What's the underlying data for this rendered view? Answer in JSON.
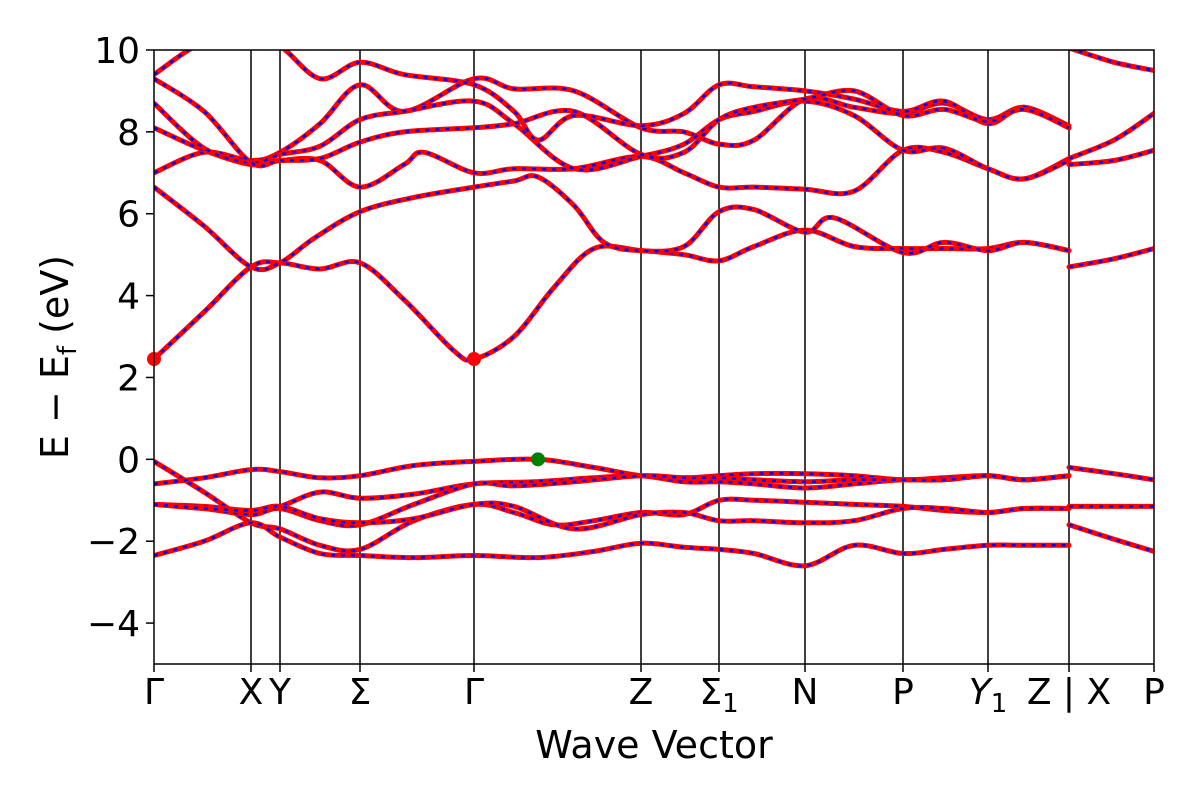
{
  "chart_data": {
    "type": "line",
    "xlabel": "Wave Vector",
    "ylabel": "E − E",
    "ylabel_sub": "f",
    "ylabel_unit": " (eV)",
    "ylim": [
      -5,
      10
    ],
    "xlim": [
      0,
      1
    ],
    "yticks": [
      "−4",
      "−2",
      "0",
      "2",
      "4",
      "6",
      "8",
      "10"
    ],
    "ytick_values": [
      -4,
      -2,
      0,
      2,
      4,
      6,
      8,
      10
    ],
    "kpoints": [
      {
        "pos": 0.0,
        "label": "Γ"
      },
      {
        "pos": 0.097,
        "label": "X"
      },
      {
        "pos": 0.126,
        "label": "Y"
      },
      {
        "pos": 0.206,
        "label": "Σ"
      },
      {
        "pos": 0.32,
        "label": "Γ"
      },
      {
        "pos": 0.487,
        "label": "Z"
      },
      {
        "pos": 0.565,
        "label": "Σ",
        "sub": "1"
      },
      {
        "pos": 0.651,
        "label": "N"
      },
      {
        "pos": 0.749,
        "label": "P"
      },
      {
        "pos": 0.834,
        "label": "Y",
        "sub": "1",
        "italic": true
      },
      {
        "pos": 0.915,
        "label": "Z | X"
      },
      {
        "pos": 1.0,
        "label": "P"
      }
    ],
    "break_at": 0.915,
    "colors": {
      "band_red": "#ff0000",
      "band_blue": "#0000ff",
      "cbm": "#ff0000",
      "vbm": "#008000",
      "frame": "#000000"
    },
    "markers": [
      {
        "name": "cbm",
        "x": 0.0,
        "y": 2.45,
        "color": "#ff0000"
      },
      {
        "name": "cbm",
        "x": 0.32,
        "y": 2.45,
        "color": "#ff0000"
      },
      {
        "name": "vbm",
        "x": 0.384,
        "y": 0.0,
        "color": "#008000"
      }
    ],
    "bands": [
      [
        [
          0,
          2.45
        ],
        [
          0.05,
          3.6
        ],
        [
          0.097,
          4.7
        ],
        [
          0.126,
          4.8
        ],
        [
          0.166,
          4.65
        ],
        [
          0.206,
          4.8
        ],
        [
          0.25,
          3.9
        ],
        [
          0.3,
          2.65
        ],
        [
          0.32,
          2.45
        ],
        [
          0.36,
          3.0
        ],
        [
          0.4,
          4.2
        ],
        [
          0.44,
          5.15
        ],
        [
          0.487,
          5.1
        ],
        [
          0.53,
          5.0
        ],
        [
          0.565,
          4.85
        ],
        [
          0.6,
          5.2
        ],
        [
          0.651,
          5.6
        ],
        [
          0.7,
          5.2
        ],
        [
          0.749,
          5.15
        ],
        [
          0.79,
          5.15
        ],
        [
          0.834,
          5.15
        ],
        [
          0.87,
          5.3
        ],
        [
          0.915,
          5.1
        ]
      ],
      [
        [
          0,
          6.65
        ],
        [
          0.05,
          5.7
        ],
        [
          0.097,
          4.7
        ],
        [
          0.126,
          4.8
        ],
        [
          0.16,
          5.4
        ],
        [
          0.206,
          6.05
        ],
        [
          0.26,
          6.4
        ],
        [
          0.32,
          6.65
        ],
        [
          0.36,
          6.8
        ],
        [
          0.384,
          6.9
        ],
        [
          0.42,
          6.2
        ],
        [
          0.45,
          5.3
        ],
        [
          0.487,
          5.1
        ],
        [
          0.53,
          5.2
        ],
        [
          0.565,
          6.05
        ],
        [
          0.6,
          6.1
        ],
        [
          0.651,
          5.55
        ],
        [
          0.68,
          5.9
        ],
        [
          0.749,
          5.05
        ],
        [
          0.79,
          5.3
        ],
        [
          0.834,
          5.1
        ],
        [
          0.87,
          5.3
        ],
        [
          0.915,
          5.1
        ]
      ],
      [
        [
          0,
          7.0
        ],
        [
          0.05,
          7.5
        ],
        [
          0.097,
          7.3
        ],
        [
          0.126,
          7.5
        ],
        [
          0.166,
          8.2
        ],
        [
          0.206,
          9.15
        ],
        [
          0.25,
          8.5
        ],
        [
          0.32,
          9.3
        ],
        [
          0.36,
          9.05
        ],
        [
          0.42,
          9.0
        ],
        [
          0.487,
          8.1
        ],
        [
          0.53,
          8.0
        ],
        [
          0.565,
          7.7
        ],
        [
          0.6,
          7.8
        ],
        [
          0.651,
          8.8
        ],
        [
          0.7,
          8.6
        ],
        [
          0.749,
          8.45
        ],
        [
          0.79,
          8.7
        ],
        [
          0.834,
          8.3
        ],
        [
          0.87,
          8.6
        ],
        [
          0.915,
          8.15
        ]
      ],
      [
        [
          0,
          8.1
        ],
        [
          0.05,
          7.55
        ],
        [
          0.097,
          7.2
        ],
        [
          0.126,
          7.3
        ],
        [
          0.166,
          7.3
        ],
        [
          0.206,
          6.65
        ],
        [
          0.25,
          7.2
        ],
        [
          0.27,
          7.5
        ],
        [
          0.32,
          7.0
        ],
        [
          0.36,
          7.1
        ],
        [
          0.42,
          7.1
        ],
        [
          0.487,
          7.4
        ],
        [
          0.53,
          7.0
        ],
        [
          0.565,
          6.65
        ],
        [
          0.6,
          6.65
        ],
        [
          0.651,
          6.6
        ],
        [
          0.7,
          6.55
        ],
        [
          0.749,
          7.55
        ],
        [
          0.79,
          7.5
        ],
        [
          0.834,
          7.1
        ],
        [
          0.87,
          6.85
        ],
        [
          0.915,
          7.35
        ]
      ],
      [
        [
          0,
          8.7
        ],
        [
          0.05,
          7.6
        ],
        [
          0.097,
          7.25
        ],
        [
          0.126,
          7.45
        ],
        [
          0.166,
          7.65
        ],
        [
          0.206,
          8.3
        ],
        [
          0.25,
          8.5
        ],
        [
          0.32,
          8.75
        ],
        [
          0.36,
          8.2
        ],
        [
          0.42,
          7.1
        ],
        [
          0.487,
          7.4
        ],
        [
          0.53,
          7.7
        ],
        [
          0.565,
          8.3
        ],
        [
          0.6,
          8.5
        ],
        [
          0.651,
          8.75
        ],
        [
          0.7,
          8.4
        ],
        [
          0.749,
          7.55
        ],
        [
          0.79,
          7.6
        ],
        [
          0.834,
          7.1
        ],
        [
          0.87,
          6.85
        ],
        [
          0.915,
          7.3
        ]
      ],
      [
        [
          0,
          9.4
        ],
        [
          0.05,
          10.2
        ],
        [
          0.097,
          10.3
        ],
        [
          0.126,
          10.1
        ],
        [
          0.166,
          9.3
        ],
        [
          0.206,
          9.7
        ],
        [
          0.25,
          9.4
        ],
        [
          0.32,
          9.15
        ],
        [
          0.36,
          8.5
        ],
        [
          0.384,
          7.8
        ],
        [
          0.42,
          8.4
        ],
        [
          0.487,
          8.15
        ],
        [
          0.53,
          8.45
        ],
        [
          0.565,
          9.15
        ],
        [
          0.6,
          9.1
        ],
        [
          0.651,
          9.0
        ],
        [
          0.7,
          8.8
        ],
        [
          0.749,
          8.5
        ],
        [
          0.79,
          8.75
        ],
        [
          0.834,
          8.2
        ],
        [
          0.87,
          8.6
        ],
        [
          0.915,
          8.1
        ]
      ],
      [
        [
          0,
          9.3
        ],
        [
          0.05,
          8.5
        ],
        [
          0.097,
          7.25
        ],
        [
          0.126,
          7.3
        ],
        [
          0.166,
          7.35
        ],
        [
          0.206,
          7.75
        ],
        [
          0.25,
          8.0
        ],
        [
          0.32,
          8.1
        ],
        [
          0.36,
          8.2
        ],
        [
          0.42,
          8.5
        ],
        [
          0.487,
          7.45
        ],
        [
          0.53,
          7.5
        ],
        [
          0.565,
          8.3
        ],
        [
          0.6,
          8.6
        ],
        [
          0.651,
          8.8
        ],
        [
          0.7,
          9.0
        ],
        [
          0.749,
          8.4
        ],
        [
          0.79,
          8.55
        ],
        [
          0.834,
          8.25
        ],
        [
          0.87,
          8.55
        ],
        [
          0.915,
          8.1
        ]
      ],
      [
        [
          0,
          -0.05
        ],
        [
          0.05,
          -0.8
        ],
        [
          0.097,
          -1.55
        ],
        [
          0.126,
          -1.7
        ],
        [
          0.166,
          -2.1
        ],
        [
          0.206,
          -2.2
        ],
        [
          0.26,
          -1.5
        ],
        [
          0.32,
          -1.1
        ],
        [
          0.36,
          -1.3
        ],
        [
          0.4,
          -1.6
        ],
        [
          0.44,
          -1.5
        ],
        [
          0.487,
          -1.3
        ],
        [
          0.53,
          -1.35
        ],
        [
          0.565,
          -1.0
        ],
        [
          0.6,
          -1.0
        ],
        [
          0.651,
          -1.05
        ],
        [
          0.7,
          -1.1
        ],
        [
          0.749,
          -1.15
        ],
        [
          0.79,
          -1.25
        ],
        [
          0.834,
          -1.3
        ],
        [
          0.87,
          -1.2
        ],
        [
          0.915,
          -1.2
        ]
      ],
      [
        [
          0,
          -0.6
        ],
        [
          0.05,
          -0.45
        ],
        [
          0.097,
          -0.25
        ],
        [
          0.126,
          -0.3
        ],
        [
          0.166,
          -0.45
        ],
        [
          0.206,
          -0.4
        ],
        [
          0.26,
          -0.15
        ],
        [
          0.32,
          -0.05
        ],
        [
          0.384,
          0.0
        ],
        [
          0.44,
          -0.2
        ],
        [
          0.487,
          -0.4
        ],
        [
          0.53,
          -0.45
        ],
        [
          0.565,
          -0.4
        ],
        [
          0.6,
          -0.35
        ],
        [
          0.651,
          -0.35
        ],
        [
          0.7,
          -0.4
        ],
        [
          0.749,
          -0.5
        ],
        [
          0.79,
          -0.45
        ],
        [
          0.834,
          -0.4
        ],
        [
          0.87,
          -0.5
        ],
        [
          0.915,
          -0.4
        ]
      ],
      [
        [
          0,
          -1.1
        ],
        [
          0.05,
          -1.15
        ],
        [
          0.097,
          -1.25
        ],
        [
          0.126,
          -1.15
        ],
        [
          0.166,
          -0.8
        ],
        [
          0.206,
          -0.95
        ],
        [
          0.26,
          -0.85
        ],
        [
          0.32,
          -0.6
        ],
        [
          0.38,
          -0.55
        ],
        [
          0.44,
          -0.45
        ],
        [
          0.487,
          -0.4
        ],
        [
          0.53,
          -0.55
        ],
        [
          0.565,
          -0.55
        ],
        [
          0.6,
          -0.6
        ],
        [
          0.651,
          -0.7
        ],
        [
          0.7,
          -0.6
        ],
        [
          0.749,
          -0.5
        ],
        [
          0.79,
          -0.5
        ],
        [
          0.834,
          -0.4
        ],
        [
          0.87,
          -0.5
        ],
        [
          0.915,
          -0.4
        ]
      ],
      [
        [
          0,
          -1.1
        ],
        [
          0.05,
          -1.2
        ],
        [
          0.097,
          -1.35
        ],
        [
          0.126,
          -1.2
        ],
        [
          0.166,
          -1.5
        ],
        [
          0.206,
          -1.6
        ],
        [
          0.26,
          -1.1
        ],
        [
          0.32,
          -0.6
        ],
        [
          0.36,
          -0.65
        ],
        [
          0.42,
          -0.55
        ],
        [
          0.487,
          -0.4
        ],
        [
          0.53,
          -0.45
        ],
        [
          0.565,
          -0.45
        ],
        [
          0.6,
          -0.5
        ],
        [
          0.651,
          -0.55
        ],
        [
          0.7,
          -0.5
        ],
        [
          0.749,
          -0.5
        ],
        [
          0.79,
          -0.5
        ],
        [
          0.834,
          -0.4
        ],
        [
          0.87,
          -0.5
        ],
        [
          0.915,
          -0.4
        ]
      ],
      [
        [
          0,
          -2.35
        ],
        [
          0.05,
          -2.0
        ],
        [
          0.097,
          -1.55
        ],
        [
          0.126,
          -1.9
        ],
        [
          0.166,
          -2.3
        ],
        [
          0.206,
          -2.35
        ],
        [
          0.26,
          -2.4
        ],
        [
          0.32,
          -2.35
        ],
        [
          0.384,
          -2.4
        ],
        [
          0.44,
          -2.25
        ],
        [
          0.487,
          -2.05
        ],
        [
          0.53,
          -2.15
        ],
        [
          0.565,
          -2.2
        ],
        [
          0.6,
          -2.3
        ],
        [
          0.651,
          -2.6
        ],
        [
          0.7,
          -2.1
        ],
        [
          0.749,
          -2.3
        ],
        [
          0.79,
          -2.2
        ],
        [
          0.834,
          -2.1
        ],
        [
          0.87,
          -2.1
        ],
        [
          0.915,
          -2.1
        ]
      ],
      [
        [
          0,
          -1.1
        ],
        [
          0.05,
          -1.2
        ],
        [
          0.097,
          -1.25
        ],
        [
          0.126,
          -1.15
        ],
        [
          0.166,
          -1.45
        ],
        [
          0.206,
          -1.55
        ],
        [
          0.26,
          -1.45
        ],
        [
          0.32,
          -1.1
        ],
        [
          0.36,
          -1.15
        ],
        [
          0.42,
          -1.7
        ],
        [
          0.487,
          -1.35
        ],
        [
          0.53,
          -1.3
        ],
        [
          0.565,
          -1.5
        ],
        [
          0.6,
          -1.5
        ],
        [
          0.651,
          -1.55
        ],
        [
          0.7,
          -1.5
        ],
        [
          0.749,
          -1.2
        ],
        [
          0.79,
          -1.2
        ],
        [
          0.834,
          -1.3
        ],
        [
          0.87,
          -1.2
        ],
        [
          0.915,
          -1.2
        ]
      ],
      [
        [
          0.915,
          4.7
        ],
        [
          0.96,
          4.9
        ],
        [
          1.0,
          5.15
        ]
      ],
      [
        [
          0.915,
          7.2
        ],
        [
          0.96,
          7.3
        ],
        [
          1.0,
          7.55
        ]
      ],
      [
        [
          0.915,
          7.35
        ],
        [
          0.96,
          7.8
        ],
        [
          1.0,
          8.45
        ]
      ],
      [
        [
          0.915,
          10.05
        ],
        [
          0.96,
          9.7
        ],
        [
          1.0,
          9.5
        ]
      ],
      [
        [
          0.915,
          -0.2
        ],
        [
          0.96,
          -0.35
        ],
        [
          1.0,
          -0.5
        ]
      ],
      [
        [
          0.915,
          -1.15
        ],
        [
          0.96,
          -1.15
        ],
        [
          1.0,
          -1.15
        ]
      ],
      [
        [
          0.915,
          -1.6
        ],
        [
          0.96,
          -1.95
        ],
        [
          1.0,
          -2.25
        ]
      ]
    ]
  }
}
